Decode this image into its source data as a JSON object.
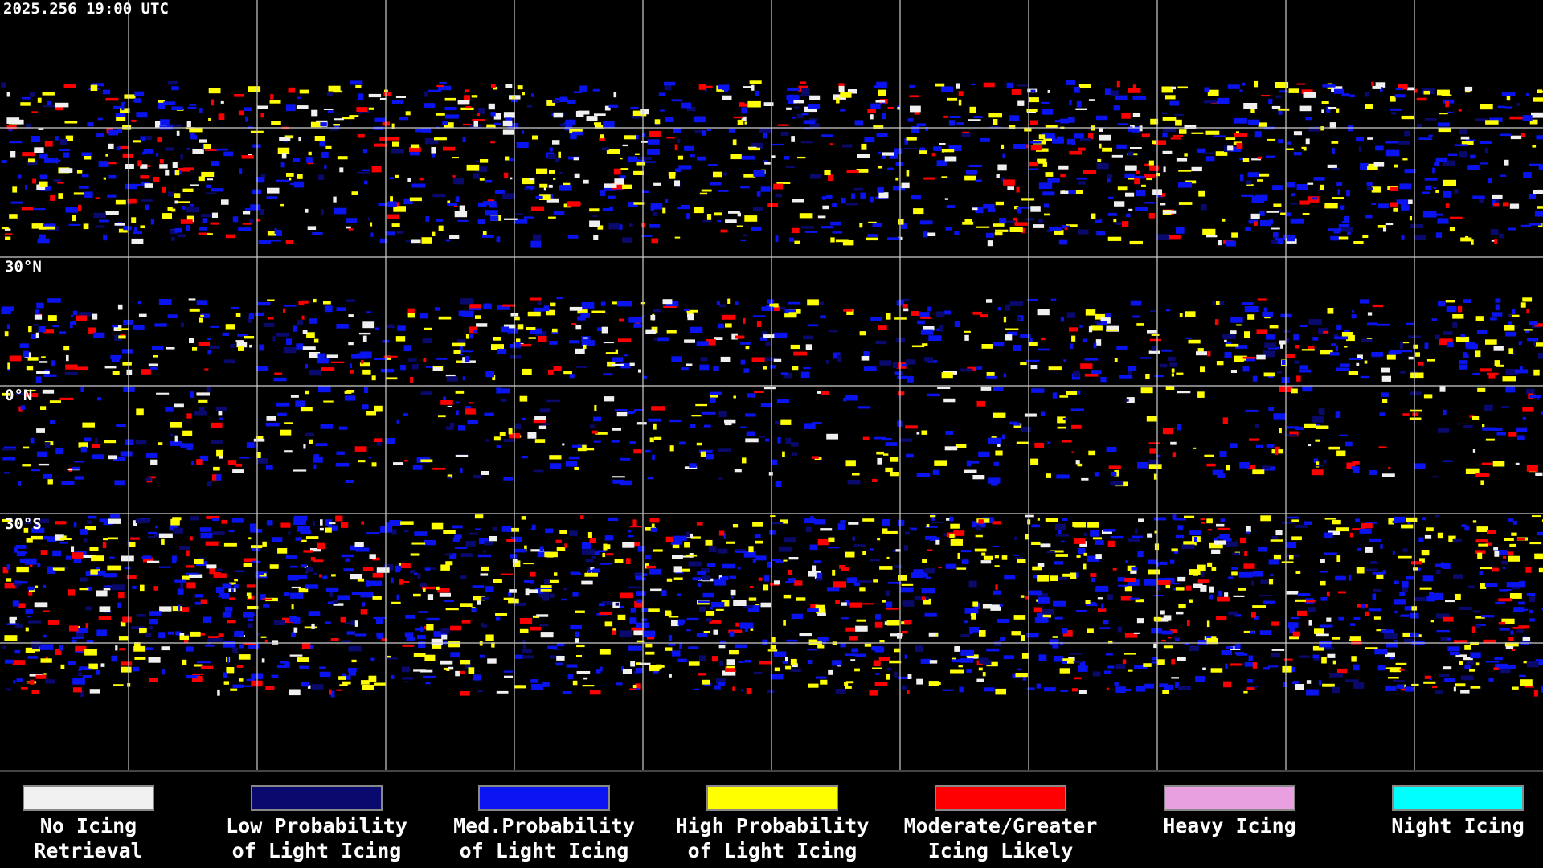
{
  "header": {
    "timestamp": "2025.256 19:00 UTC"
  },
  "grid_labels": [
    "30°N",
    "0°N",
    "30°S"
  ],
  "legend": [
    {
      "color": "#f0f0f0",
      "lines": [
        "No Icing",
        "Retrieval"
      ]
    },
    {
      "color": "#0a0a6e",
      "lines": [
        "Low Probability",
        "of Light Icing"
      ]
    },
    {
      "color": "#0a14f0",
      "lines": [
        "Med.Probability",
        "of Light Icing"
      ]
    },
    {
      "color": "#ffff00",
      "lines": [
        "High Probability",
        "of Light Icing"
      ]
    },
    {
      "color": "#ff0000",
      "lines": [
        "Moderate/Greater",
        "Icing Likely"
      ]
    },
    {
      "color": "#e8a0e0",
      "lines": [
        "Heavy Icing"
      ]
    },
    {
      "color": "#00ffff",
      "lines": [
        "Night Icing"
      ]
    }
  ]
}
